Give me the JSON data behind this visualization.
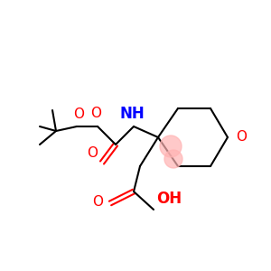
{
  "bg_color": "#ffffff",
  "bond_color": "#000000",
  "bond_width": 1.5,
  "atom_colors": {
    "O": "#ff0000",
    "N": "#0000ff",
    "C": "#000000"
  },
  "font_size_atom": 11,
  "font_size_small": 9,
  "highlight_color": "#ffb3b3"
}
